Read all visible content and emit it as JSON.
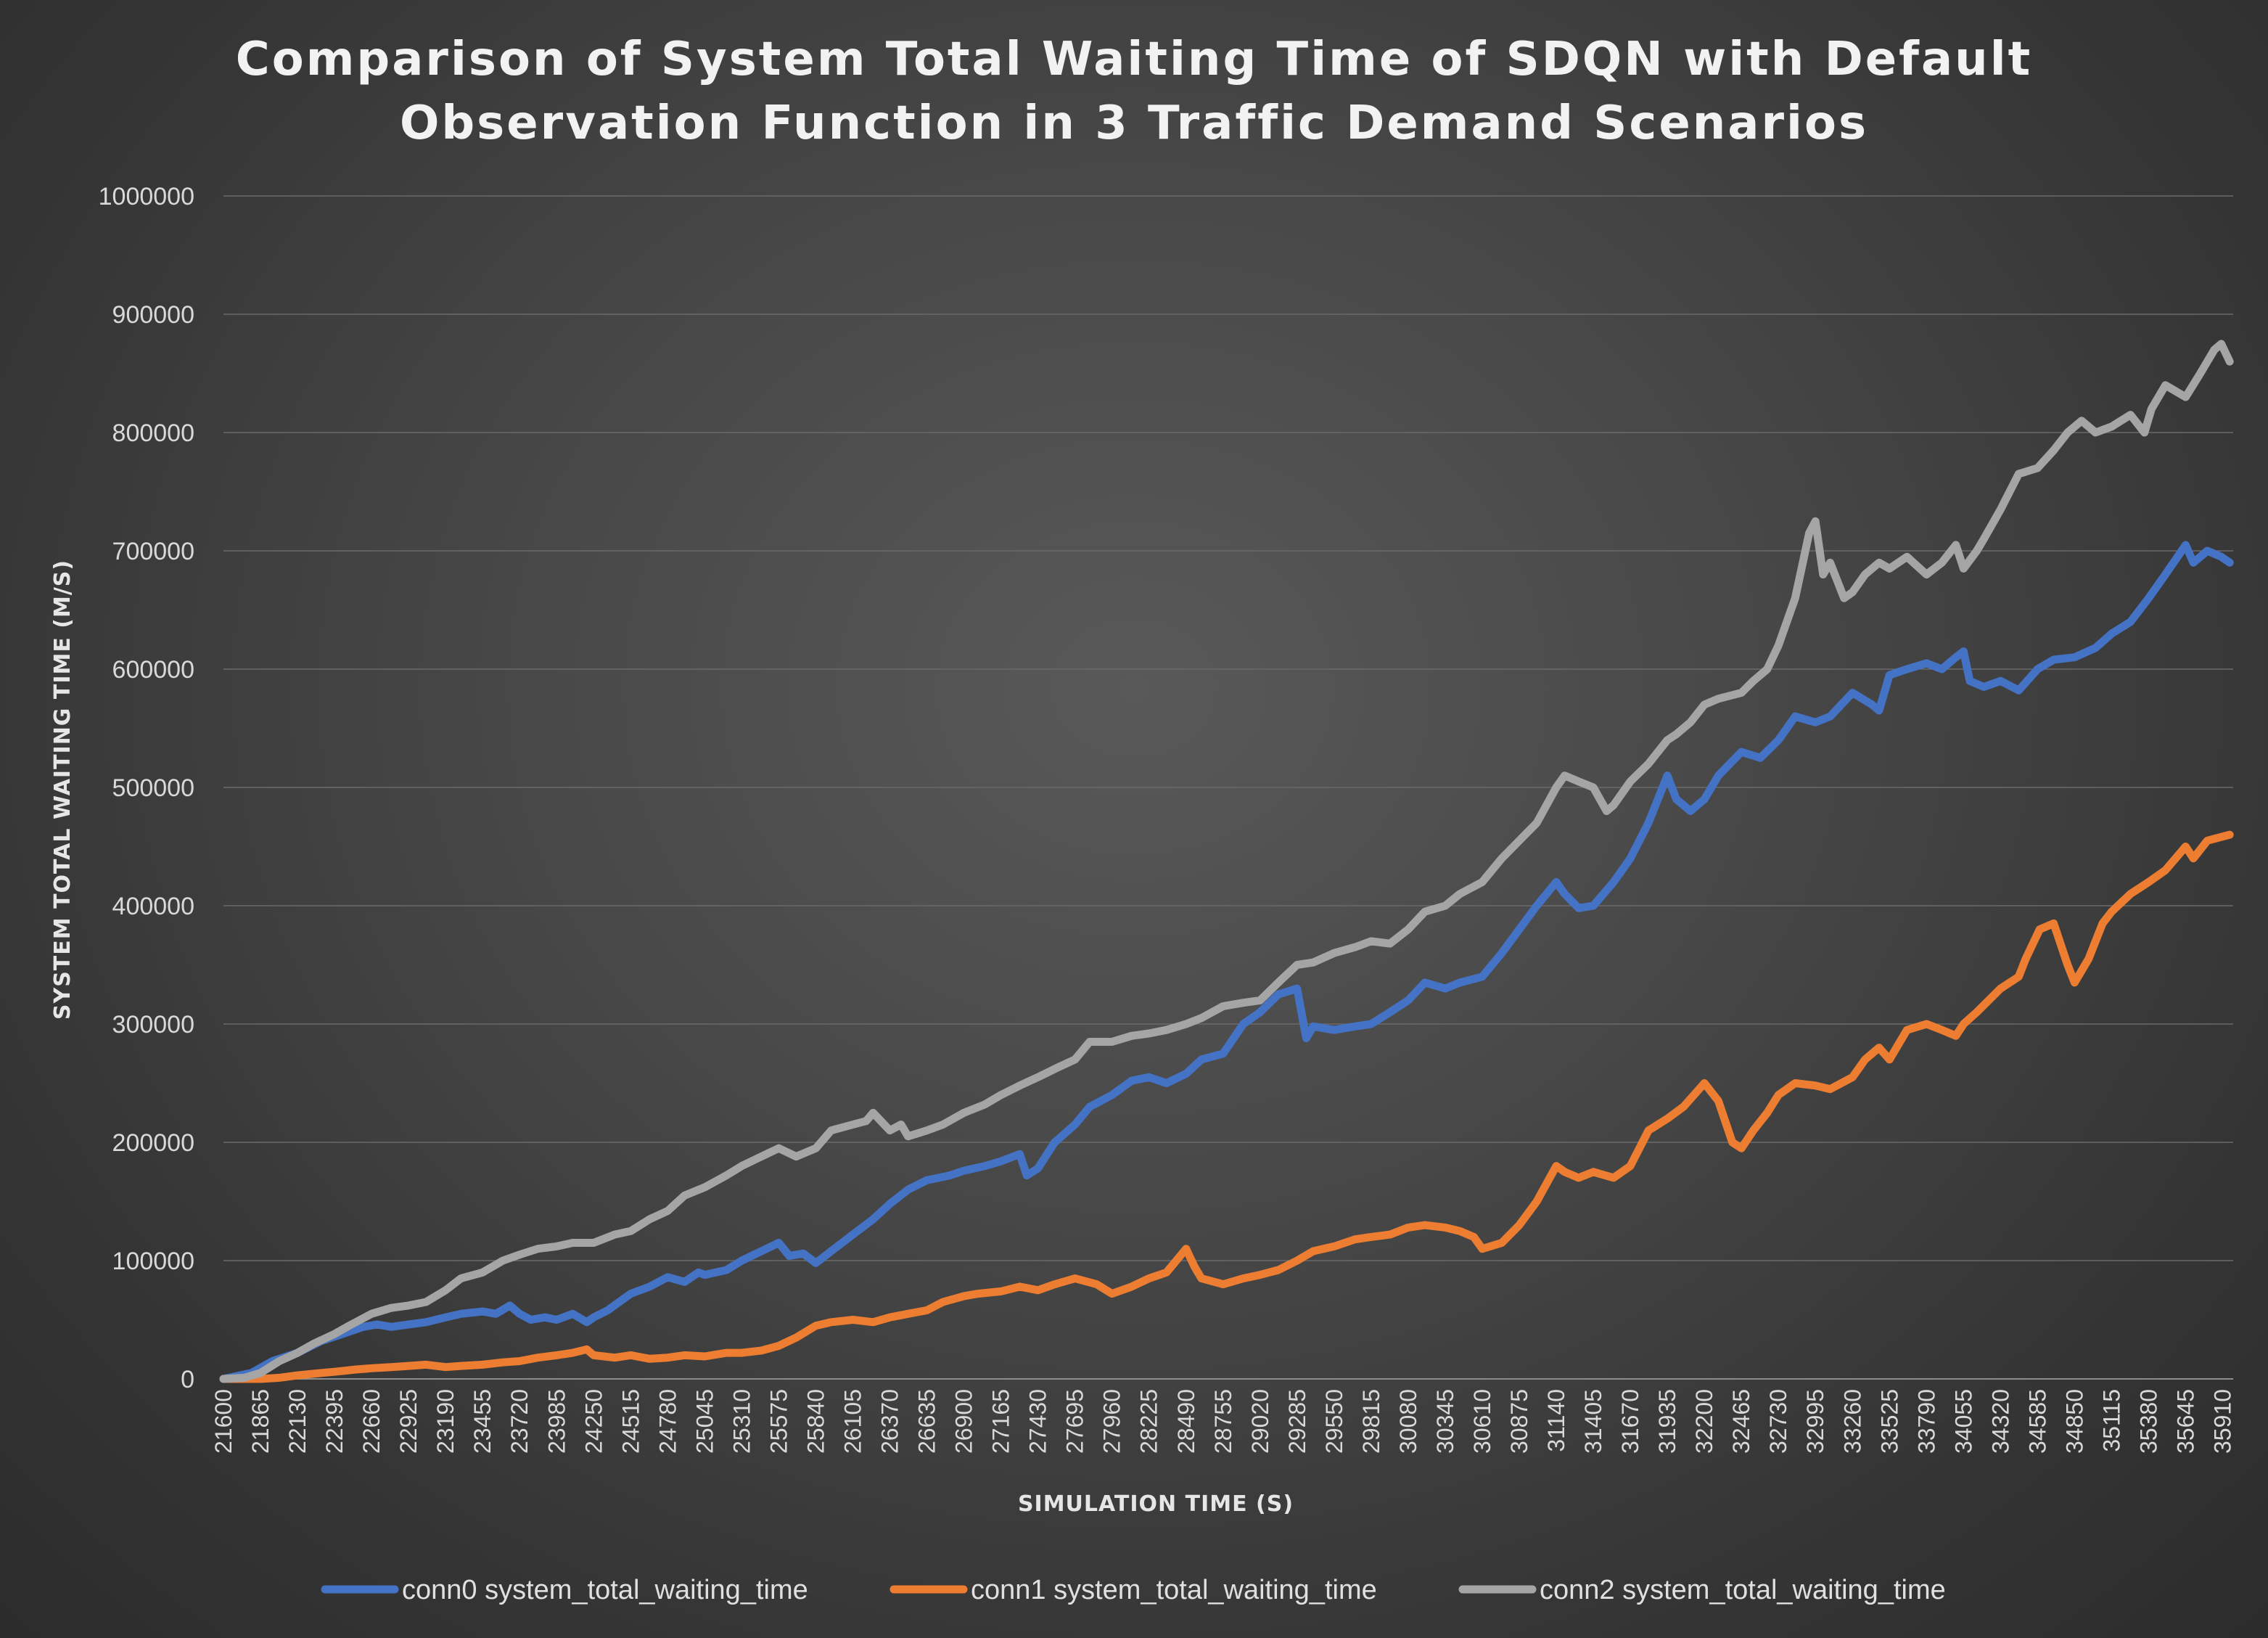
{
  "chart_data": {
    "type": "line",
    "title_lines": [
      "Comparison of System Total Waiting Time of SDQN with Default",
      "Observation Function in 3 Traffic Demand Scenarios"
    ],
    "xlabel": "SIMULATION TIME (S)",
    "ylabel": "SYSTEM TOTAL WAITING TIME (M/S)",
    "xlim": [
      21600,
      35985
    ],
    "ylim": [
      0,
      1000000
    ],
    "grid": true,
    "legend_position": "bottom",
    "y_ticks": [
      0,
      100000,
      200000,
      300000,
      400000,
      500000,
      600000,
      700000,
      800000,
      900000,
      1000000
    ],
    "x_ticks": [
      21600,
      21865,
      22130,
      22395,
      22660,
      22925,
      23190,
      23455,
      23720,
      23985,
      24250,
      24515,
      24780,
      25045,
      25310,
      25575,
      25840,
      26105,
      26370,
      26635,
      26900,
      27165,
      27430,
      27695,
      27960,
      28225,
      28490,
      28755,
      29020,
      29285,
      29550,
      29815,
      30080,
      30345,
      30610,
      30875,
      31140,
      31405,
      31670,
      31935,
      32200,
      32465,
      32730,
      32995,
      33260,
      33525,
      33790,
      34055,
      34320,
      34585,
      34850,
      35115,
      35380,
      35645,
      35910
    ],
    "series": [
      {
        "name": "conn0 system_total_waiting_time",
        "color": "#4472c4",
        "x": [
          21600,
          21800,
          21950,
          22130,
          22300,
          22450,
          22600,
          22700,
          22800,
          22925,
          23050,
          23190,
          23300,
          23455,
          23550,
          23650,
          23720,
          23800,
          23900,
          23985,
          24100,
          24200,
          24250,
          24350,
          24515,
          24650,
          24780,
          24900,
          25000,
          25045,
          25200,
          25310,
          25450,
          25575,
          25650,
          25750,
          25840,
          25950,
          26105,
          26250,
          26370,
          26500,
          26635,
          26800,
          26900,
          27050,
          27165,
          27300,
          27350,
          27430,
          27550,
          27695,
          27800,
          27960,
          28100,
          28225,
          28350,
          28490,
          28600,
          28755,
          28900,
          29020,
          29150,
          29285,
          29350,
          29400,
          29550,
          29700,
          29815,
          29950,
          30080,
          30200,
          30345,
          30450,
          30610,
          30750,
          30875,
          31000,
          31140,
          31200,
          31300,
          31405,
          31550,
          31670,
          31800,
          31935,
          32000,
          32100,
          32200,
          32300,
          32465,
          32600,
          32730,
          32850,
          32995,
          33100,
          33260,
          33400,
          33450,
          33525,
          33650,
          33790,
          33900,
          34000,
          34055,
          34100,
          34200,
          34320,
          34450,
          34585,
          34700,
          34850,
          35000,
          35115,
          35250,
          35380,
          35500,
          35645,
          35700,
          35800,
          35900,
          35960
        ],
        "values": [
          0,
          5000,
          15000,
          22000,
          32000,
          38000,
          44000,
          46000,
          44000,
          46000,
          48000,
          52000,
          55000,
          57000,
          55000,
          62000,
          55000,
          50000,
          52000,
          50000,
          55000,
          48000,
          52000,
          58000,
          72000,
          78000,
          86000,
          82000,
          90000,
          88000,
          92000,
          100000,
          108000,
          115000,
          104000,
          106000,
          98000,
          108000,
          122000,
          135000,
          148000,
          160000,
          168000,
          172000,
          176000,
          180000,
          184000,
          190000,
          172000,
          178000,
          200000,
          215000,
          230000,
          240000,
          252000,
          255000,
          250000,
          258000,
          270000,
          275000,
          300000,
          310000,
          325000,
          330000,
          288000,
          298000,
          295000,
          298000,
          300000,
          310000,
          320000,
          335000,
          330000,
          335000,
          340000,
          360000,
          380000,
          400000,
          420000,
          410000,
          398000,
          400000,
          420000,
          440000,
          470000,
          510000,
          490000,
          480000,
          490000,
          510000,
          530000,
          525000,
          540000,
          560000,
          555000,
          560000,
          580000,
          570000,
          565000,
          595000,
          600000,
          605000,
          600000,
          610000,
          615000,
          590000,
          585000,
          590000,
          582000,
          600000,
          608000,
          610000,
          618000,
          630000,
          640000,
          660000,
          680000,
          705000,
          690000,
          700000,
          695000,
          690000
        ]
      },
      {
        "name": "conn1 system_total_waiting_time",
        "color": "#ed7d31",
        "x": [
          21600,
          21865,
          22000,
          22130,
          22300,
          22395,
          22550,
          22660,
          22800,
          22925,
          23050,
          23190,
          23300,
          23455,
          23600,
          23720,
          23850,
          23985,
          24100,
          24200,
          24250,
          24400,
          24515,
          24650,
          24780,
          24900,
          25045,
          25200,
          25310,
          25450,
          25575,
          25700,
          25840,
          25950,
          26105,
          26250,
          26370,
          26500,
          26635,
          26750,
          26900,
          27000,
          27165,
          27300,
          27430,
          27550,
          27695,
          27850,
          27960,
          28100,
          28225,
          28350,
          28490,
          28550,
          28600,
          28755,
          28900,
          29020,
          29150,
          29285,
          29400,
          29550,
          29700,
          29815,
          29950,
          30080,
          30200,
          30345,
          30450,
          30550,
          30610,
          30750,
          30875,
          31000,
          31140,
          31200,
          31300,
          31405,
          31550,
          31670,
          31800,
          31935,
          32050,
          32200,
          32300,
          32400,
          32465,
          32550,
          32650,
          32730,
          32850,
          32995,
          33100,
          33260,
          33350,
          33450,
          33525,
          33650,
          33790,
          33900,
          34000,
          34055,
          34150,
          34320,
          34450,
          34500,
          34600,
          34700,
          34800,
          34850,
          34950,
          35050,
          35115,
          35250,
          35380,
          35500,
          35645,
          35700,
          35800,
          35960
        ],
        "values": [
          0,
          0,
          1000,
          3000,
          5000,
          6000,
          8000,
          9000,
          10000,
          11000,
          12000,
          10000,
          11000,
          12000,
          14000,
          15000,
          18000,
          20000,
          22000,
          25000,
          20000,
          18000,
          20000,
          17000,
          18000,
          20000,
          19000,
          22000,
          22000,
          24000,
          28000,
          35000,
          45000,
          48000,
          50000,
          48000,
          52000,
          55000,
          58000,
          65000,
          70000,
          72000,
          74000,
          78000,
          75000,
          80000,
          85000,
          80000,
          72000,
          78000,
          85000,
          90000,
          110000,
          95000,
          85000,
          80000,
          85000,
          88000,
          92000,
          100000,
          108000,
          112000,
          118000,
          120000,
          122000,
          128000,
          130000,
          128000,
          125000,
          120000,
          110000,
          115000,
          130000,
          150000,
          180000,
          175000,
          170000,
          175000,
          170000,
          180000,
          210000,
          220000,
          230000,
          250000,
          235000,
          200000,
          195000,
          210000,
          225000,
          240000,
          250000,
          248000,
          245000,
          255000,
          270000,
          280000,
          270000,
          295000,
          300000,
          295000,
          290000,
          300000,
          310000,
          330000,
          340000,
          355000,
          380000,
          385000,
          350000,
          335000,
          355000,
          385000,
          395000,
          410000,
          420000,
          430000,
          450000,
          440000,
          455000,
          460000
        ]
      },
      {
        "name": "conn2 system_total_waiting_time",
        "color": "#a5a5a5",
        "x": [
          21600,
          21750,
          21865,
          22000,
          22130,
          22250,
          22395,
          22500,
          22660,
          22800,
          22925,
          23050,
          23190,
          23300,
          23455,
          23600,
          23720,
          23850,
          23985,
          24100,
          24250,
          24400,
          24515,
          24650,
          24780,
          24900,
          25045,
          25200,
          25310,
          25450,
          25575,
          25700,
          25840,
          25950,
          26105,
          26200,
          26250,
          26370,
          26450,
          26500,
          26635,
          26750,
          26900,
          27050,
          27165,
          27300,
          27430,
          27550,
          27695,
          27800,
          27960,
          28100,
          28225,
          28350,
          28490,
          28600,
          28755,
          28900,
          29020,
          29150,
          29285,
          29400,
          29550,
          29700,
          29815,
          29950,
          30080,
          30200,
          30345,
          30450,
          30610,
          30750,
          30875,
          31000,
          31140,
          31200,
          31300,
          31405,
          31500,
          31550,
          31670,
          31800,
          31935,
          32000,
          32100,
          32200,
          32300,
          32465,
          32550,
          32650,
          32730,
          32850,
          32950,
          32995,
          33050,
          33100,
          33200,
          33260,
          33350,
          33450,
          33525,
          33650,
          33790,
          33900,
          34000,
          34055,
          34150,
          34200,
          34320,
          34450,
          34585,
          34700,
          34800,
          34900,
          35000,
          35115,
          35250,
          35350,
          35400,
          35500,
          35645,
          35750,
          35850,
          35900,
          35960
        ],
        "values": [
          0,
          1000,
          5000,
          15000,
          22000,
          30000,
          38000,
          45000,
          55000,
          60000,
          62000,
          65000,
          75000,
          85000,
          90000,
          100000,
          105000,
          110000,
          112000,
          115000,
          115000,
          122000,
          125000,
          135000,
          142000,
          155000,
          162000,
          172000,
          180000,
          188000,
          195000,
          188000,
          195000,
          210000,
          215000,
          218000,
          225000,
          210000,
          215000,
          205000,
          210000,
          215000,
          225000,
          232000,
          240000,
          248000,
          255000,
          262000,
          270000,
          285000,
          285000,
          290000,
          292000,
          295000,
          300000,
          305000,
          315000,
          318000,
          320000,
          335000,
          350000,
          352000,
          360000,
          365000,
          370000,
          368000,
          380000,
          395000,
          400000,
          410000,
          420000,
          440000,
          455000,
          470000,
          500000,
          510000,
          505000,
          500000,
          480000,
          485000,
          505000,
          520000,
          540000,
          545000,
          555000,
          570000,
          575000,
          580000,
          590000,
          600000,
          620000,
          660000,
          715000,
          725000,
          680000,
          690000,
          660000,
          665000,
          680000,
          690000,
          685000,
          695000,
          680000,
          690000,
          705000,
          685000,
          700000,
          710000,
          735000,
          765000,
          770000,
          785000,
          800000,
          810000,
          800000,
          805000,
          815000,
          800000,
          820000,
          840000,
          830000,
          850000,
          870000,
          875000,
          860000
        ]
      }
    ]
  }
}
